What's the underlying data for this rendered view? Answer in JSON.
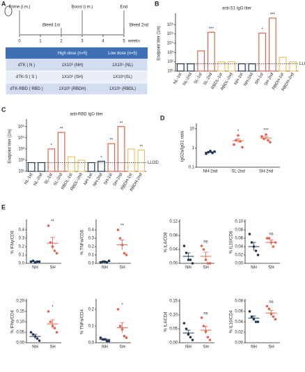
{
  "timeline": {
    "panel": "A",
    "unit": "weeks",
    "ticks": [
      0,
      1,
      2,
      3,
      4,
      5
    ],
    "events": [
      {
        "label": "Prime (i.m.)",
        "week": 0
      },
      {
        "label": "Boost (i.m.)",
        "week": 3
      },
      {
        "label": "End",
        "week": 5
      },
      {
        "label": "Bleed 1st",
        "week": 2
      },
      {
        "label": "Bleed 2nd",
        "week": 5
      }
    ]
  },
  "table": {
    "header": [
      "High dose (n=5)",
      "Low dose (n=5)"
    ],
    "rows": [
      [
        "dTK ( N )",
        "1X10⁶ (NH)",
        "1X10⁵ (NL)"
      ],
      [
        "dTK-S ( S )",
        "1X10⁶ (SH)",
        "1X10⁵(SL)"
      ],
      [
        "dTK-RBD ( RBD )",
        "1X10⁶ (RBDH)",
        "1X10⁵ (RBDL)"
      ]
    ]
  },
  "chart_data": [
    {
      "type": "bar",
      "panel": "B",
      "title": "anti-S1 IgG titer",
      "y_label": "Endpoint titer (1/n)",
      "log": true,
      "categories": [
        "NL-1st",
        "NL-2nd",
        "SL-1st",
        "SL-2nd",
        "RBDL-1st",
        "RBDL-2nd",
        "NH-1st",
        "NH-2nd",
        "SH-1st",
        "SH-2nd",
        "RBDH-1st",
        "RBDH-2nd"
      ],
      "values": [
        60,
        60,
        1500,
        150000,
        100,
        100,
        60,
        60,
        120000,
        5000000,
        300,
        100
      ],
      "colors": [
        "#1f3550",
        "#1f3550",
        "#e8604c",
        "#e8604c",
        "#f0c060",
        "#f0c060",
        "#1f3550",
        "#1f3550",
        "#e8604c",
        "#e8604c",
        "#f0c060",
        "#f0c060"
      ],
      "annotations": [
        null,
        null,
        null,
        "***",
        null,
        null,
        null,
        null,
        "*",
        "***",
        null,
        null
      ],
      "reference_line": {
        "value": 60,
        "label": "LLOD"
      },
      "ylim": [
        10,
        10000000
      ],
      "yticks": [
        {
          "value": 10,
          "label": "10¹"
        },
        {
          "value": 100,
          "label": "10²"
        },
        {
          "value": 1000,
          "label": "10³"
        },
        {
          "value": 10000,
          "label": "10⁴"
        },
        {
          "value": 100000,
          "label": "10⁵"
        },
        {
          "value": 1000000,
          "label": "10⁶"
        }
      ]
    },
    {
      "type": "bar",
      "panel": "C",
      "title": "anti-RBD IgG titer",
      "y_label": "Endpoint titer (1/n)",
      "log": true,
      "categories": [
        "NL-1st",
        "NL-2nd",
        "SL-1st",
        "SL-2nd",
        "RBDL-1st",
        "RBDL-2nd",
        "NH-1st",
        "NH-2nd",
        "SH-1st",
        "SH-2nd",
        "RBDH-1st",
        "RBDH-2nd"
      ],
      "values": [
        60,
        60,
        1000,
        30000,
        200,
        100,
        60,
        80,
        3000,
        100000,
        1000,
        800
      ],
      "colors": [
        "#1f3550",
        "#1f3550",
        "#e8604c",
        "#e8604c",
        "#f0c060",
        "#f0c060",
        "#1f3550",
        "#1f3550",
        "#e8604c",
        "#e8604c",
        "#f0c060",
        "#f0c060"
      ],
      "annotations": [
        null,
        null,
        "*",
        "**",
        null,
        null,
        null,
        "*",
        "**",
        "**",
        null,
        "**"
      ],
      "reference_line": {
        "value": 60,
        "label": "LLOD"
      },
      "ylim": [
        10,
        300000
      ],
      "yticks": [
        {
          "value": 10,
          "label": "10¹"
        },
        {
          "value": 100,
          "label": "10²"
        },
        {
          "value": 1000,
          "label": "10³"
        },
        {
          "value": 10000,
          "label": "10⁴"
        },
        {
          "value": 100000,
          "label": "10⁵"
        }
      ]
    },
    {
      "type": "strip",
      "panel": "D",
      "y_label": "IgG2a/IgG1 ratio",
      "log": true,
      "categories": [
        "NH-2nd",
        "SL-2nd",
        "SH-2nd"
      ],
      "colors": [
        "#1f3550",
        "#e8604c",
        "#e8604c"
      ],
      "values": [
        0.6,
        2.4,
        3.3
      ],
      "errors": [
        0.05,
        0.6,
        0.6
      ],
      "points": [
        [
          0.5,
          0.6,
          0.7,
          0.55,
          0.65
        ],
        [
          1.5,
          2.5,
          4.5,
          2.2,
          1.1
        ],
        [
          4,
          3,
          5,
          2.5,
          2
        ]
      ],
      "annotations": [
        null,
        "*",
        "***"
      ],
      "ylim": [
        0.1,
        15
      ],
      "yticks": [
        0.1,
        1,
        10
      ]
    },
    {
      "type": "strip",
      "panel": "E",
      "y_label": "% IFNγ/CD8",
      "categories": [
        "NH",
        "SH"
      ],
      "colors": [
        "#1f3550",
        "#e8604c"
      ],
      "values": [
        0.02,
        0.24
      ],
      "errors": [
        0.004,
        0.07
      ],
      "points": [
        [
          0.02,
          0.03,
          0.01,
          0.02,
          0.02
        ],
        [
          0.45,
          0.25,
          0.2,
          0.15,
          0.12
        ]
      ],
      "annotations": [
        null,
        "**"
      ],
      "ylim": [
        0,
        0.5
      ],
      "yticks": [
        {
          "value": 0,
          "label": "0.0"
        },
        0.1,
        0.2,
        0.3,
        0.4
      ]
    },
    {
      "type": "strip",
      "y_label": "% TNFα/CD8",
      "categories": [
        "NH",
        "SH"
      ],
      "colors": [
        "#1f3550",
        "#e8604c"
      ],
      "values": [
        0.02,
        0.22
      ],
      "errors": [
        0.005,
        0.06
      ],
      "points": [
        [
          0.01,
          0.02,
          0.02,
          0.01,
          0.03
        ],
        [
          0.4,
          0.3,
          0.22,
          0.12,
          0.1
        ]
      ],
      "annotations": [
        null,
        "**"
      ],
      "ylim": [
        0,
        0.5
      ],
      "yticks": [
        {
          "value": 0,
          "label": "0.0"
        },
        0.1,
        0.2,
        0.3,
        0.4
      ]
    },
    {
      "type": "strip",
      "y_label": "% IL4/CD8",
      "categories": [
        "NH",
        "SH"
      ],
      "colors": [
        "#1f3550",
        "#e8604c"
      ],
      "values": [
        0.02,
        0.02
      ],
      "errors": [
        0.01,
        0.012
      ],
      "points": [
        [
          0.05,
          0.03,
          0.01,
          0.01,
          0.0
        ],
        [
          0.05,
          0.04,
          0.01,
          0.0,
          0.0
        ]
      ],
      "annotations": [
        null,
        "ns"
      ],
      "ylim": [
        0,
        0.12
      ],
      "yticks": [
        {
          "value": 0,
          "label": "0.00"
        },
        0.04,
        0.08,
        0.12
      ]
    },
    {
      "type": "strip",
      "y_label": "% IL10/CD8",
      "categories": [
        "NH",
        "SH"
      ],
      "colors": [
        "#1f3550",
        "#e8604c"
      ],
      "values": [
        0.04,
        0.05
      ],
      "errors": [
        0.01,
        0.006
      ],
      "points": [
        [
          0.07,
          0.05,
          0.04,
          0.03,
          0.02
        ],
        [
          0.06,
          0.06,
          0.05,
          0.04,
          0.05
        ]
      ],
      "annotations": [
        null,
        "ns"
      ],
      "ylim": [
        0,
        0.1
      ],
      "yticks": [
        {
          "value": 0,
          "label": "0.00"
        },
        0.02,
        0.04,
        0.06,
        0.08,
        {
          "value": 0.1,
          "label": "0.10"
        }
      ]
    },
    {
      "type": "strip",
      "y_label": "% IFNγ/CD4",
      "categories": [
        "NH",
        "SH"
      ],
      "colors": [
        "#1f3550",
        "#e8604c"
      ],
      "values": [
        0.03,
        0.09
      ],
      "errors": [
        0.01,
        0.02
      ],
      "points": [
        [
          0.05,
          0.04,
          0.03,
          0.02,
          0.01
        ],
        [
          0.15,
          0.1,
          0.08,
          0.07,
          0.05
        ]
      ],
      "annotations": [
        null,
        "*"
      ],
      "ylim": [
        0,
        0.2
      ],
      "yticks": [
        {
          "value": 0,
          "label": "0.00"
        },
        0.05,
        {
          "value": 0.1,
          "label": "0.10"
        },
        0.15,
        {
          "value": 0.2,
          "label": "0.20"
        }
      ]
    },
    {
      "type": "strip",
      "y_label": "% TNFα/CD4",
      "categories": [
        "NH",
        "SH"
      ],
      "colors": [
        "#1f3550",
        "#e8604c"
      ],
      "values": [
        0.02,
        0.09
      ],
      "errors": [
        0.004,
        0.03
      ],
      "points": [
        [
          0.03,
          0.02,
          0.02,
          0.01,
          0.01
        ],
        [
          0.2,
          0.1,
          0.08,
          0.04,
          0.03
        ]
      ],
      "annotations": [
        null,
        "*"
      ],
      "ylim": [
        0,
        0.25
      ],
      "yticks": [
        {
          "value": 0,
          "label": "0.0"
        },
        0.1,
        0.2
      ]
    },
    {
      "type": "strip",
      "y_label": "% IL4/CD4",
      "categories": [
        "NH",
        "SH"
      ],
      "colors": [
        "#1f3550",
        "#e8604c"
      ],
      "values": [
        0.035,
        0.045
      ],
      "errors": [
        0.01,
        0.014
      ],
      "points": [
        [
          0.07,
          0.05,
          0.03,
          0.02,
          0.01
        ],
        [
          0.09,
          0.06,
          0.04,
          0.02,
          0.01
        ]
      ],
      "annotations": [
        null,
        "ns"
      ],
      "ylim": [
        0,
        0.15
      ],
      "yticks": [
        {
          "value": 0,
          "label": "0.00"
        },
        0.05,
        {
          "value": 0.1,
          "label": "0.10"
        },
        0.15
      ]
    },
    {
      "type": "strip",
      "y_label": "% IL10/CD4",
      "categories": [
        "NH",
        "SH"
      ],
      "colors": [
        "#1f3550",
        "#e8604c"
      ],
      "values": [
        0.047,
        0.057
      ],
      "errors": [
        0.004,
        0.005
      ],
      "points": [
        [
          0.06,
          0.05,
          0.045,
          0.04,
          0.04
        ],
        [
          0.07,
          0.065,
          0.055,
          0.05,
          0.045
        ]
      ],
      "annotations": [
        null,
        "ns"
      ],
      "ylim": [
        0,
        0.08
      ],
      "yticks": [
        {
          "value": 0,
          "label": "0.00"
        },
        0.02,
        0.04,
        0.06,
        0.08
      ]
    }
  ]
}
